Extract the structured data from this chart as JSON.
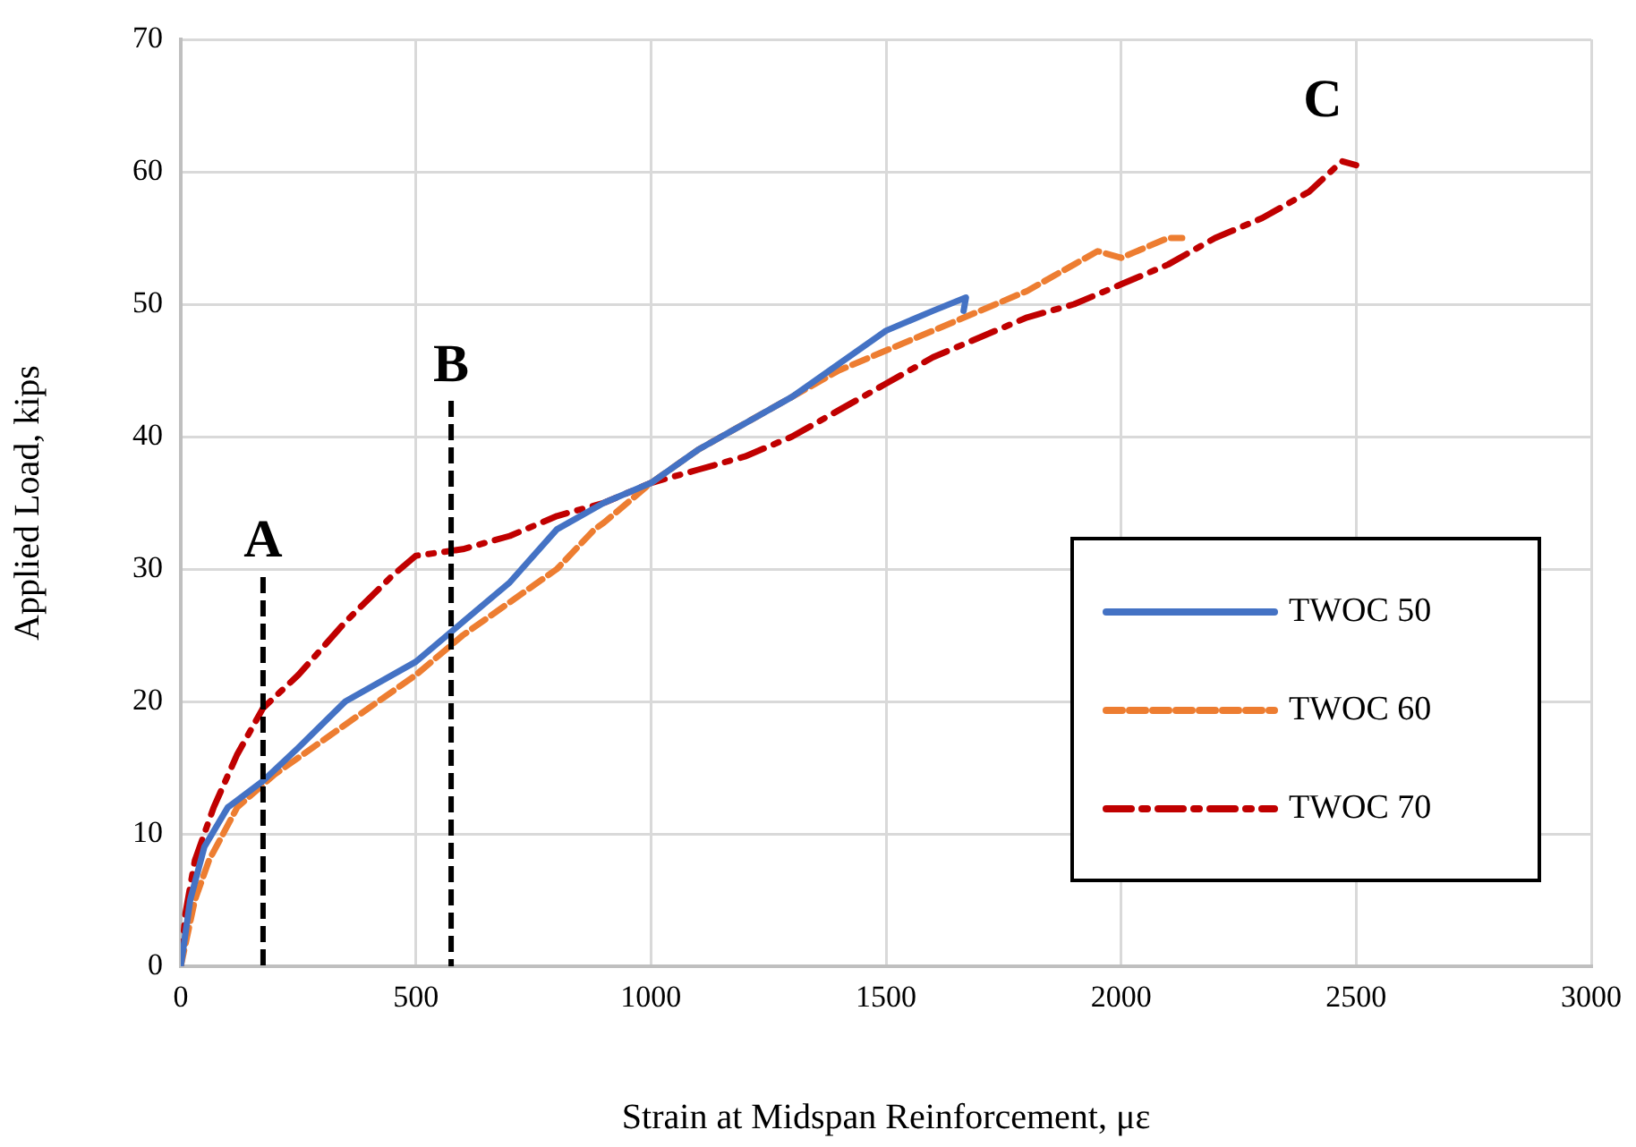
{
  "chart_data": {
    "type": "line",
    "xlabel": "Strain at Midspan Reinforcement, με",
    "ylabel": "Applied Load, kips",
    "xlim": [
      0,
      3000
    ],
    "xticks": [
      0,
      500,
      1000,
      1500,
      2000,
      2500,
      3000
    ],
    "ylim": [
      0,
      70
    ],
    "yticks": [
      0,
      10,
      20,
      30,
      40,
      50,
      60,
      70
    ],
    "grid": true,
    "legend": "right",
    "marker": "none",
    "series": [
      {
        "name": "TWOC 50",
        "color": "#4472c4",
        "line_style": "solid",
        "x": [
          0,
          20,
          50,
          100,
          175,
          250,
          350,
          500,
          600,
          700,
          800,
          900,
          1000,
          1100,
          1200,
          1300,
          1400,
          1500,
          1600,
          1670,
          1665
        ],
        "values": [
          0,
          5,
          9,
          12,
          14,
          16.5,
          20,
          23,
          26,
          29,
          33,
          35,
          36.5,
          39,
          41,
          43,
          45.5,
          48,
          49.5,
          50.5,
          49.5
        ]
      },
      {
        "name": "TWOC 60",
        "color": "#ed7d31",
        "line_style": "dashed",
        "x": [
          0,
          30,
          60,
          120,
          200,
          300,
          400,
          500,
          600,
          700,
          800,
          880,
          900,
          1000,
          1100,
          1200,
          1300,
          1400,
          1500,
          1600,
          1700,
          1800,
          1900,
          1950,
          2000,
          2100,
          2130
        ],
        "values": [
          0,
          5,
          8,
          12,
          14.5,
          17,
          19.5,
          22,
          25,
          27.5,
          30,
          33,
          33.5,
          36.5,
          39,
          41,
          43,
          45,
          46.5,
          48,
          49.5,
          51,
          53,
          54,
          53.5,
          55,
          55
        ]
      },
      {
        "name": "TWOC 70",
        "color": "#c00000",
        "line_style": "dashdot",
        "x": [
          0,
          10,
          30,
          70,
          120,
          175,
          250,
          350,
          450,
          500,
          600,
          700,
          800,
          900,
          1000,
          1100,
          1200,
          1300,
          1400,
          1500,
          1600,
          1700,
          1800,
          1900,
          2000,
          2100,
          2200,
          2300,
          2400,
          2470,
          2500
        ],
        "values": [
          0,
          4,
          8,
          12,
          16,
          19.5,
          22,
          26,
          29.5,
          31,
          31.5,
          32.5,
          34,
          35,
          36.5,
          37.5,
          38.5,
          40,
          42,
          44,
          46,
          47.5,
          49,
          50,
          51.5,
          53,
          55,
          56.5,
          58.5,
          60.8,
          60.5
        ]
      }
    ],
    "ref_lines": [
      {
        "axis": "x",
        "value": 175,
        "label": "A",
        "color": "#000000",
        "line_style": "dashed"
      },
      {
        "axis": "x",
        "value": 575,
        "label": "B",
        "color": "#000000",
        "line_style": "dashed"
      }
    ],
    "annotations": [
      "C"
    ]
  }
}
